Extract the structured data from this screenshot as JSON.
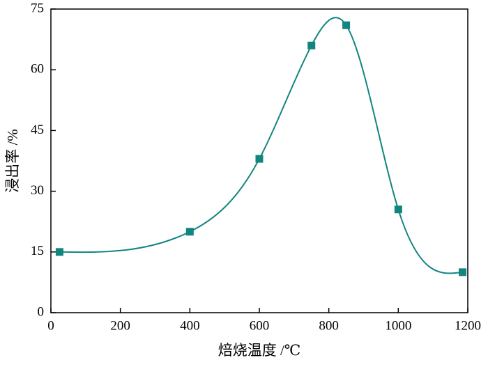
{
  "chart_data": {
    "type": "scatter",
    "smooth": true,
    "x_label": "焙烧温度 /℃",
    "y_label": "浸出率 /%",
    "x": [
      25,
      400,
      600,
      750,
      850,
      1000,
      1185
    ],
    "values": [
      15,
      20,
      38,
      66,
      71,
      25.5,
      10
    ],
    "color": "#12857f",
    "xlim": [
      0,
      1200
    ],
    "xticks": [
      0,
      200,
      400,
      600,
      800,
      1000,
      1200
    ],
    "ylim": [
      0,
      75
    ],
    "yticks": [
      0,
      15,
      30,
      45,
      60,
      75
    ]
  }
}
